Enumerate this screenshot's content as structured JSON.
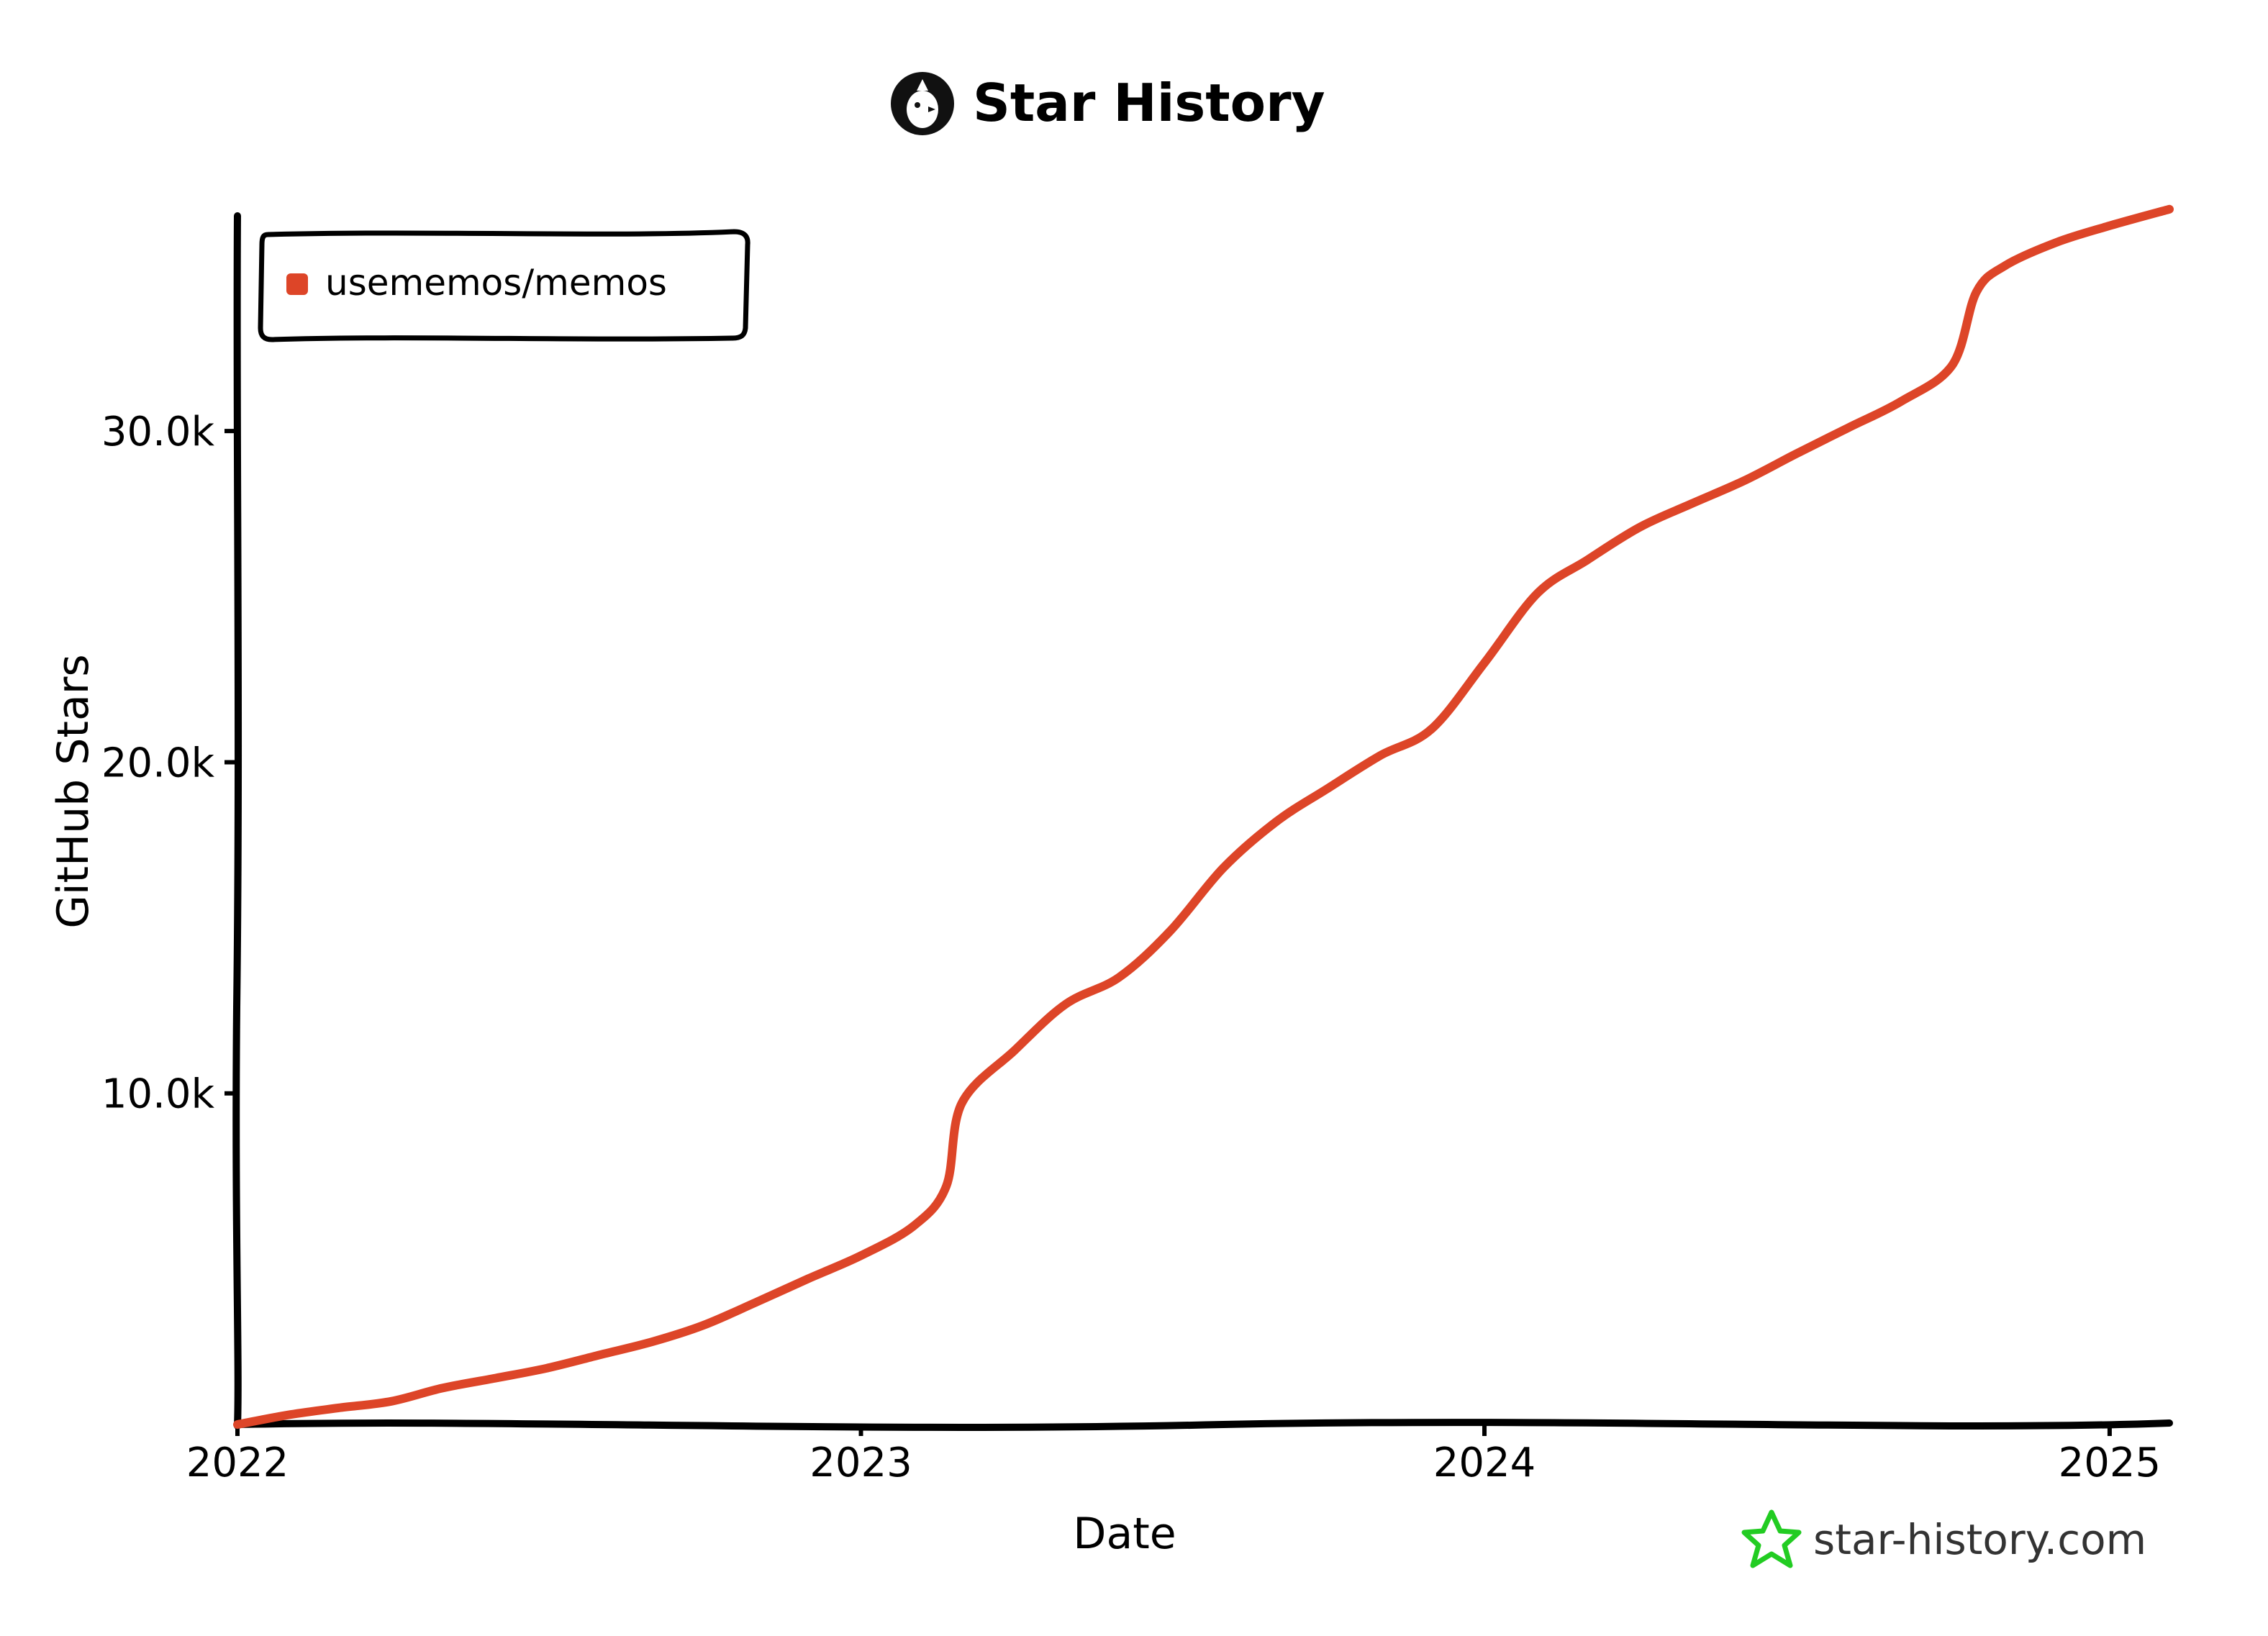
{
  "header": {
    "title": "Star History",
    "logo_icon": "star-history-bird-logo"
  },
  "footer": {
    "brand_text": "star-history.com",
    "brand_icon": "green-star-icon",
    "brand_icon_color": "#22cc22"
  },
  "chart_data": {
    "type": "line",
    "title": "Star History",
    "xlabel": "Date",
    "ylabel": "GitHub Stars",
    "x_ticks": [
      "2022",
      "2023",
      "2024",
      "2025"
    ],
    "y_ticks": [
      "10.0k",
      "20.0k",
      "30.0k"
    ],
    "y_tick_values": [
      10000,
      20000,
      30000
    ],
    "xlim": [
      "2022-01-01",
      "2025-02-05"
    ],
    "ylim": [
      0,
      36500
    ],
    "legend_position": "top-left",
    "series": [
      {
        "name": "usememos/memos",
        "color": "#dd4528",
        "points": [
          {
            "x": "2022-01-01",
            "y": 0
          },
          {
            "x": "2022-02-01",
            "y": 300
          },
          {
            "x": "2022-03-01",
            "y": 500
          },
          {
            "x": "2022-04-01",
            "y": 700
          },
          {
            "x": "2022-05-01",
            "y": 1100
          },
          {
            "x": "2022-06-01",
            "y": 1400
          },
          {
            "x": "2022-07-01",
            "y": 1700
          },
          {
            "x": "2022-08-01",
            "y": 2100
          },
          {
            "x": "2022-09-01",
            "y": 2500
          },
          {
            "x": "2022-10-01",
            "y": 3000
          },
          {
            "x": "2022-11-01",
            "y": 3700
          },
          {
            "x": "2022-12-01",
            "y": 4400
          },
          {
            "x": "2023-01-01",
            "y": 5100
          },
          {
            "x": "2023-02-01",
            "y": 6000
          },
          {
            "x": "2023-02-20",
            "y": 7200
          },
          {
            "x": "2023-03-01",
            "y": 9700
          },
          {
            "x": "2023-04-01",
            "y": 11300
          },
          {
            "x": "2023-05-01",
            "y": 12700
          },
          {
            "x": "2023-06-01",
            "y": 13500
          },
          {
            "x": "2023-07-01",
            "y": 14900
          },
          {
            "x": "2023-08-01",
            "y": 16800
          },
          {
            "x": "2023-09-01",
            "y": 18200
          },
          {
            "x": "2023-10-01",
            "y": 19200
          },
          {
            "x": "2023-11-01",
            "y": 20200
          },
          {
            "x": "2023-12-01",
            "y": 21000
          },
          {
            "x": "2024-01-01",
            "y": 23000
          },
          {
            "x": "2024-02-01",
            "y": 25100
          },
          {
            "x": "2024-03-01",
            "y": 26100
          },
          {
            "x": "2024-04-01",
            "y": 27100
          },
          {
            "x": "2024-05-01",
            "y": 27800
          },
          {
            "x": "2024-06-01",
            "y": 28500
          },
          {
            "x": "2024-07-01",
            "y": 29300
          },
          {
            "x": "2024-08-01",
            "y": 30100
          },
          {
            "x": "2024-09-01",
            "y": 30900
          },
          {
            "x": "2024-10-01",
            "y": 32000
          },
          {
            "x": "2024-10-15",
            "y": 34200
          },
          {
            "x": "2024-11-01",
            "y": 35000
          },
          {
            "x": "2024-12-01",
            "y": 35700
          },
          {
            "x": "2025-01-01",
            "y": 36200
          },
          {
            "x": "2025-02-05",
            "y": 36700
          }
        ]
      }
    ]
  }
}
